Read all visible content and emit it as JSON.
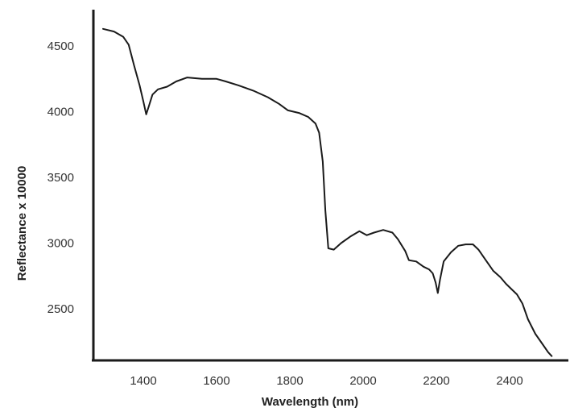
{
  "chart_data": {
    "type": "line",
    "title": "",
    "xlabel": "Wavelength (nm)",
    "ylabel": "Reflectance x 10000",
    "xlim": [
      1250,
      2525
    ],
    "ylim": [
      2100,
      4800
    ],
    "x_ticks": [
      1400,
      1600,
      1800,
      2000,
      2200,
      2400
    ],
    "y_ticks": [
      2500,
      3000,
      3500,
      4000,
      4500
    ],
    "grid": false,
    "legend": "none",
    "series": [
      {
        "color": "#1a1a1a",
        "points": [
          [
            1290,
            4630
          ],
          [
            1320,
            4610
          ],
          [
            1345,
            4570
          ],
          [
            1360,
            4510
          ],
          [
            1375,
            4350
          ],
          [
            1390,
            4200
          ],
          [
            1400,
            4080
          ],
          [
            1408,
            3980
          ],
          [
            1415,
            4040
          ],
          [
            1425,
            4130
          ],
          [
            1440,
            4170
          ],
          [
            1465,
            4190
          ],
          [
            1490,
            4230
          ],
          [
            1520,
            4260
          ],
          [
            1560,
            4250
          ],
          [
            1600,
            4250
          ],
          [
            1625,
            4230
          ],
          [
            1660,
            4200
          ],
          [
            1700,
            4160
          ],
          [
            1740,
            4110
          ],
          [
            1770,
            4060
          ],
          [
            1795,
            4010
          ],
          [
            1825,
            3990
          ],
          [
            1850,
            3960
          ],
          [
            1870,
            3910
          ],
          [
            1880,
            3840
          ],
          [
            1890,
            3620
          ],
          [
            1897,
            3250
          ],
          [
            1905,
            2960
          ],
          [
            1920,
            2950
          ],
          [
            1940,
            3000
          ],
          [
            1965,
            3050
          ],
          [
            1990,
            3090
          ],
          [
            2010,
            3060
          ],
          [
            2030,
            3080
          ],
          [
            2055,
            3100
          ],
          [
            2080,
            3080
          ],
          [
            2095,
            3030
          ],
          [
            2115,
            2940
          ],
          [
            2125,
            2870
          ],
          [
            2145,
            2860
          ],
          [
            2165,
            2820
          ],
          [
            2180,
            2800
          ],
          [
            2190,
            2770
          ],
          [
            2198,
            2700
          ],
          [
            2204,
            2620
          ],
          [
            2210,
            2720
          ],
          [
            2220,
            2860
          ],
          [
            2240,
            2930
          ],
          [
            2260,
            2980
          ],
          [
            2280,
            2990
          ],
          [
            2300,
            2990
          ],
          [
            2315,
            2950
          ],
          [
            2335,
            2870
          ],
          [
            2355,
            2790
          ],
          [
            2375,
            2740
          ],
          [
            2390,
            2690
          ],
          [
            2405,
            2650
          ],
          [
            2420,
            2610
          ],
          [
            2435,
            2540
          ],
          [
            2450,
            2420
          ],
          [
            2470,
            2310
          ],
          [
            2490,
            2230
          ],
          [
            2505,
            2170
          ],
          [
            2515,
            2140
          ]
        ]
      }
    ]
  }
}
